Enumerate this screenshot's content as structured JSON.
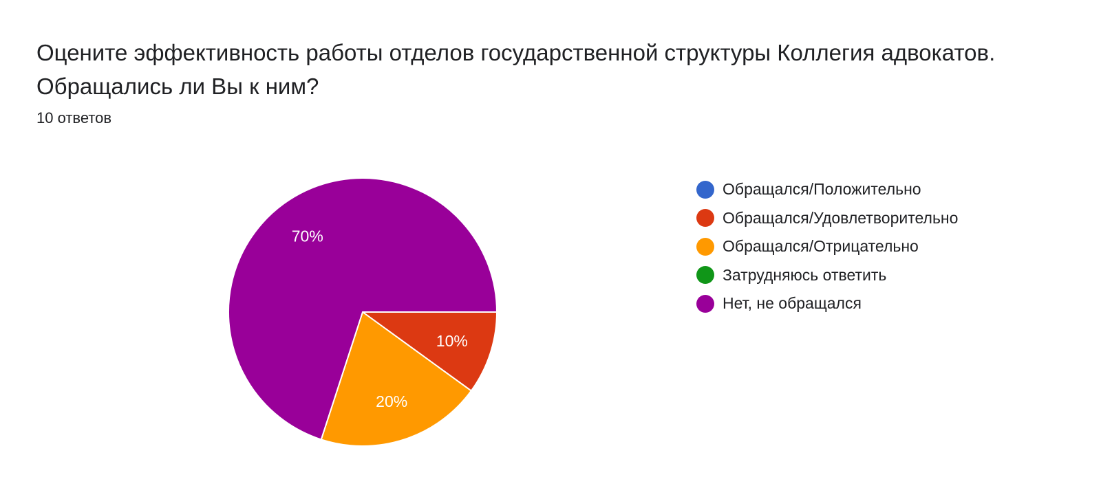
{
  "header": {
    "question": "Оцените эффективность работы отделов государственной структуры Коллегия адвокатов. Обращались ли Вы к ним?",
    "response_count": "10 ответов"
  },
  "chart_data": {
    "type": "pie",
    "title": "Оцените эффективность работы отделов государственной структуры Коллегия адвокатов. Обращались ли Вы к ним?",
    "total_responses": 10,
    "legend_position": "right",
    "slices": [
      {
        "label": "Обращался/Положительно",
        "value": 0,
        "percent_label": "0%",
        "color": "#3366cc"
      },
      {
        "label": "Обращался/Удовлетворительно",
        "value": 10,
        "percent_label": "10%",
        "color": "#dc3912"
      },
      {
        "label": "Обращался/Отрицательно",
        "value": 20,
        "percent_label": "20%",
        "color": "#ff9900"
      },
      {
        "label": "Затрудняюсь ответить",
        "value": 0,
        "percent_label": "0%",
        "color": "#109618"
      },
      {
        "label": "Нет, не обращался",
        "value": 70,
        "percent_label": "70%",
        "color": "#990099"
      }
    ]
  }
}
